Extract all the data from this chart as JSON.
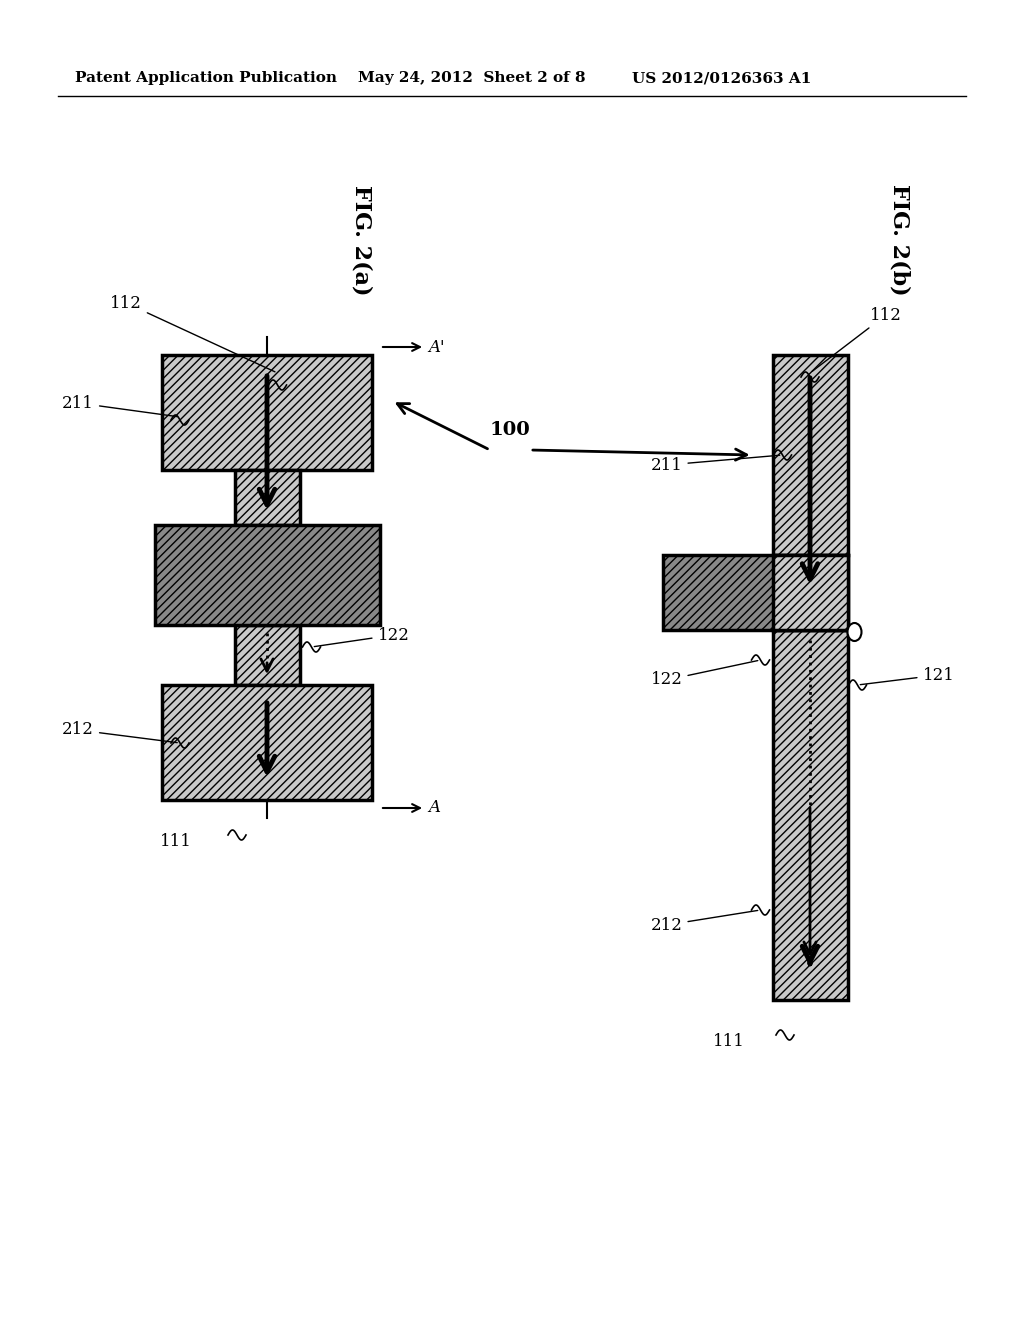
{
  "bg_color": "#ffffff",
  "header_text": "Patent Application Publication",
  "header_date": "May 24, 2012  Sheet 2 of 8",
  "header_patent": "US 2012/0126363 A1",
  "fig_a_label": "FIG. 2(a)",
  "fig_b_label": "FIG. 2(b)",
  "label_100": "100",
  "hatch_light": "////",
  "hatch_dark": "////",
  "fill_light": "#c8c8c8",
  "fill_dark": "#888888",
  "fill_white": "#ffffff",
  "lw_thick": 2.5,
  "lw_thin": 1.5
}
